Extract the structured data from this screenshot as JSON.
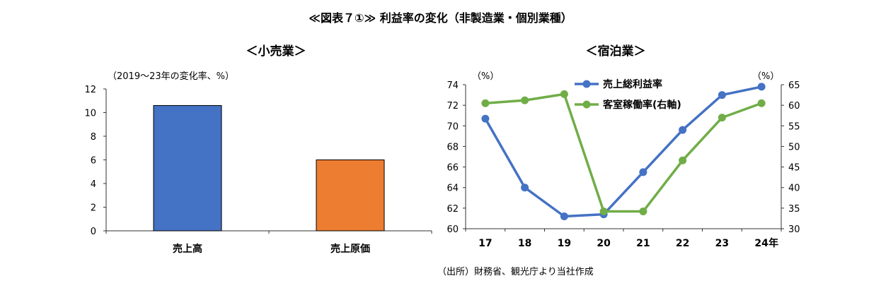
{
  "title": "≪図表７①≫ 利益率の変化（非製造業・個別業種）",
  "source": "（出所）財務省、観光庁より当社作成",
  "chart_data": [
    {
      "type": "bar",
      "title": "＜小売業＞",
      "ylabel": "（2019～23年の変化率、%）",
      "categories": [
        "売上高",
        "売上原価"
      ],
      "values": [
        10.6,
        6.0
      ],
      "colors": [
        "#4472c4",
        "#ed7d31"
      ],
      "ylim": [
        0,
        12
      ],
      "yticks": [
        0,
        2,
        4,
        6,
        8,
        10,
        12
      ],
      "grid": false
    },
    {
      "type": "line",
      "title": "＜宿泊業＞",
      "x": [
        "17",
        "18",
        "19",
        "20",
        "21",
        "22",
        "23",
        "24"
      ],
      "x_unit": "年",
      "left_axis_unit": "（%）",
      "right_axis_unit": "（%）",
      "ylim_left": [
        60,
        74
      ],
      "yticks_left": [
        60,
        62,
        64,
        66,
        68,
        70,
        72,
        74
      ],
      "ylim_right": [
        30,
        65
      ],
      "yticks_right": [
        30,
        35,
        40,
        45,
        50,
        55,
        60,
        65
      ],
      "legend_position": "top-center",
      "grid": false,
      "series": [
        {
          "name": "売上総利益率",
          "axis": "left",
          "color": "#4472c4",
          "values": [
            70.7,
            64.0,
            61.2,
            61.4,
            65.5,
            69.6,
            73.0,
            73.8
          ]
        },
        {
          "name": "客室稼働率(右軸)",
          "axis": "right",
          "color": "#70ad47",
          "values": [
            60.5,
            61.2,
            62.7,
            34.2,
            34.2,
            46.6,
            57.0,
            60.5
          ]
        }
      ]
    }
  ]
}
